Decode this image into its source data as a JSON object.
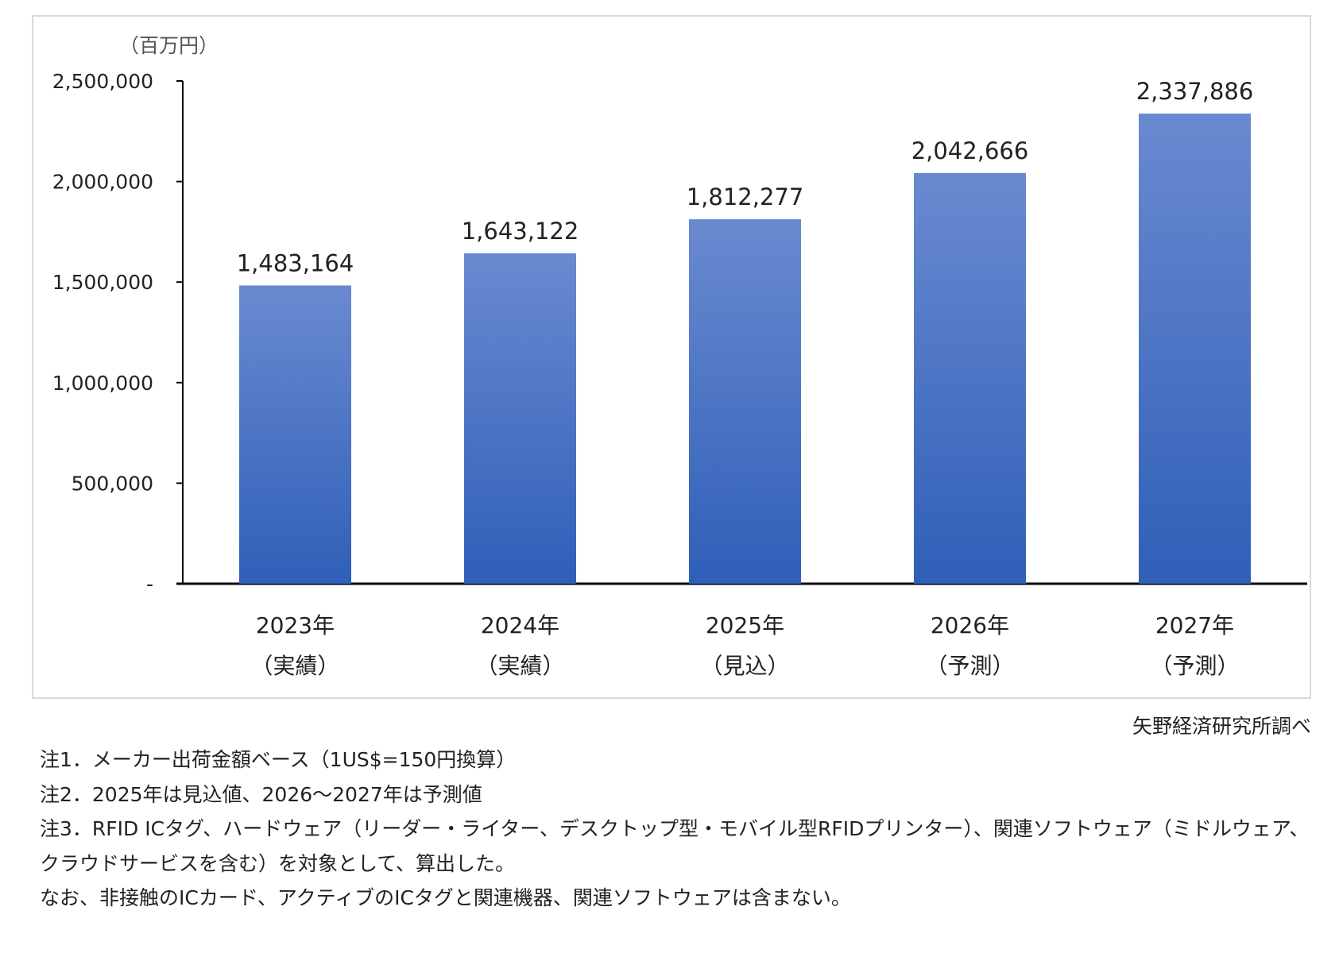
{
  "chart_data": {
    "type": "bar",
    "unit_label": "（百万円）",
    "categories": [
      {
        "year": "2023年",
        "status": "（実績）"
      },
      {
        "year": "2024年",
        "status": "（実績）"
      },
      {
        "year": "2025年",
        "status": "（見込）"
      },
      {
        "year": "2026年",
        "status": "（予測）"
      },
      {
        "year": "2027年",
        "status": "（予測）"
      }
    ],
    "values": [
      1483164,
      1643122,
      1812277,
      2042666,
      2337886
    ],
    "value_labels": [
      "1,483,164",
      "1,643,122",
      "1,812,277",
      "2,042,666",
      "2,337,886"
    ],
    "ylim": [
      0,
      2500000
    ],
    "yticks": [
      0,
      500000,
      1000000,
      1500000,
      2000000,
      2500000
    ],
    "ytick_labels": [
      "-",
      "500,000",
      "1,000,000",
      "1,500,000",
      "2,000,000",
      "2,500,000"
    ],
    "grid": false,
    "colors": {
      "bar_top": "#6a8ad0",
      "bar_bottom": "#2f5fb8",
      "axis": "#000000"
    }
  },
  "source": "矢野経済研究所調べ",
  "notes": [
    "注1．メーカー出荷金額ベース（1US$=150円換算）",
    "注2．2025年は見込値、2026～2027年は予測値",
    "注3．RFID ICタグ、ハードウェア（リーダー・ライター、デスクトップ型・モバイル型RFIDプリンター）、関連ソフトウェア（ミドルウェア、",
    "クラウドサービスを含む）を対象として、算出した。",
    "なお、非接触のICカード、アクティブのICタグと関連機器、関連ソフトウェアは含まない。"
  ]
}
